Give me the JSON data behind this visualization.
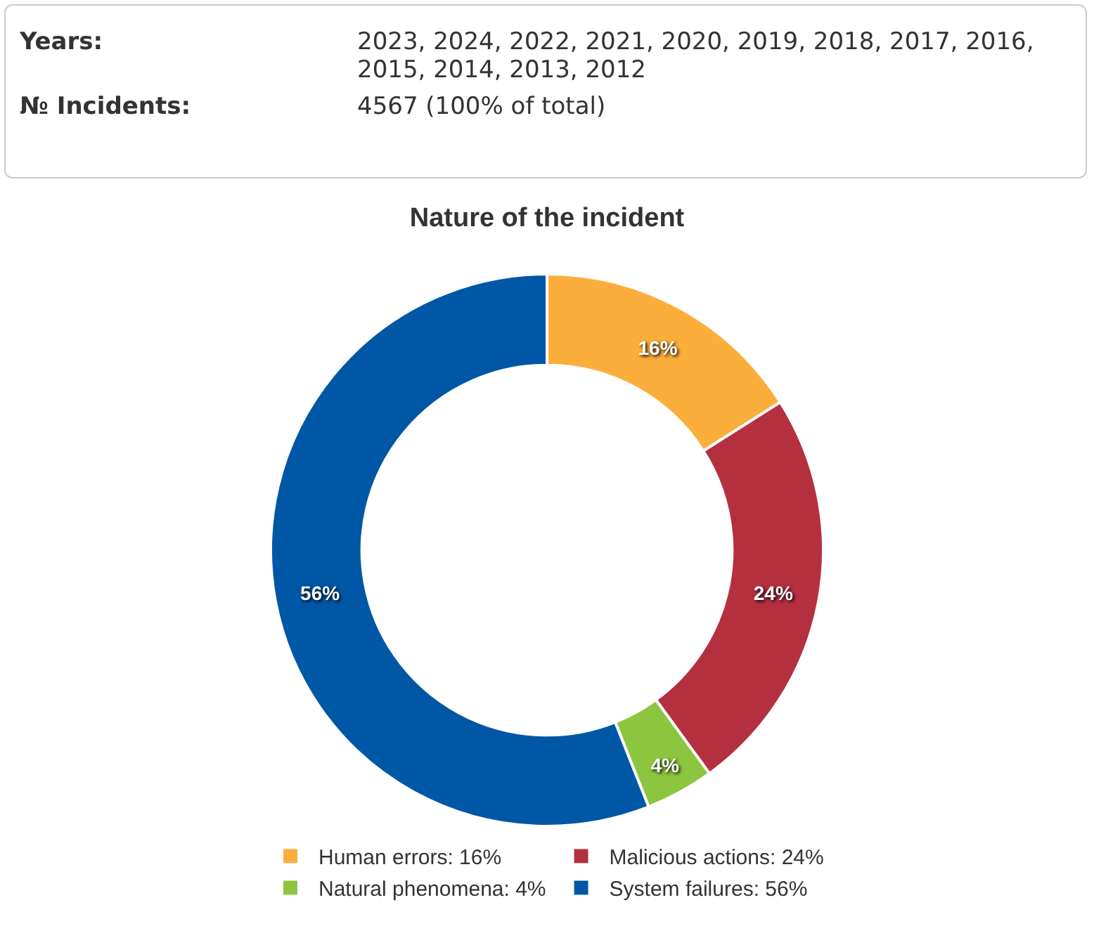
{
  "chart_data": [
    {
      "type": "other",
      "annotations": [
        "Years:",
        "2023, 2024, 2022, 2021, 2020, 2019, 2018, 2017, 2016, 2015, 2014, 2013, 2012",
        "№ Incidents:",
        "4567 (100% of total)"
      ]
    },
    {
      "type": "donut",
      "title": "Nature of the incident",
      "categories": [
        "Human errors",
        "Malicious actions",
        "Natural phenomena",
        "System failures"
      ],
      "values": [
        16,
        24,
        4,
        56
      ],
      "value_labels": [
        "16%",
        "24%",
        "4%",
        "56%"
      ],
      "colors": [
        "#fbae3c",
        "#b5303f",
        "#8cc63e",
        "#0057a6"
      ],
      "legend": "bottom"
    }
  ]
}
